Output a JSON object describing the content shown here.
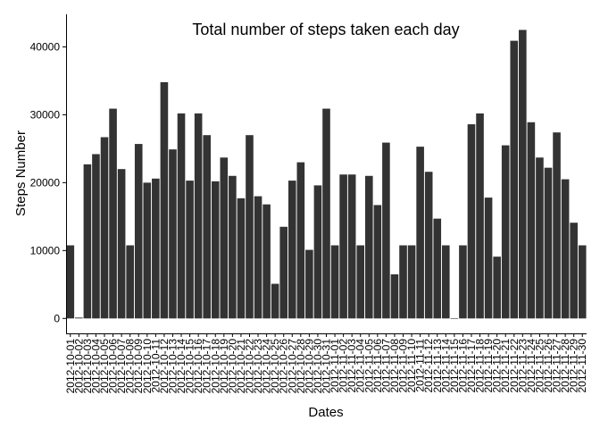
{
  "chart_data": {
    "type": "bar",
    "title": "Total number of steps taken each day",
    "xlabel": "Dates",
    "ylabel": "Steps Number",
    "ylim": [
      -2200,
      44800
    ],
    "yticks": [
      0,
      10000,
      20000,
      30000,
      40000
    ],
    "ytick_labels": [
      "0",
      "10000",
      "20000",
      "30000",
      "40000"
    ],
    "grid": false,
    "bar_color": "#333333",
    "categories": [
      "2012-10-01",
      "2012-10-02",
      "2012-10-03",
      "2012-10-04",
      "2012-10-05",
      "2012-10-06",
      "2012-10-07",
      "2012-10-08",
      "2012-10-09",
      "2012-10-10",
      "2012-10-11",
      "2012-10-12",
      "2012-10-13",
      "2012-10-14",
      "2012-10-15",
      "2012-10-16",
      "2012-10-17",
      "2012-10-18",
      "2012-10-19",
      "2012-10-20",
      "2012-10-21",
      "2012-10-22",
      "2012-10-23",
      "2012-10-24",
      "2012-10-25",
      "2012-10-26",
      "2012-10-27",
      "2012-10-28",
      "2012-10-29",
      "2012-10-30",
      "2012-10-31",
      "2012-11-01",
      "2012-11-02",
      "2012-11-03",
      "2012-11-04",
      "2012-11-05",
      "2012-11-06",
      "2012-11-07",
      "2012-11-08",
      "2012-11-09",
      "2012-11-10",
      "2012-11-11",
      "2012-11-12",
      "2012-11-13",
      "2012-11-14",
      "2012-11-15",
      "2012-11-16",
      "2012-11-17",
      "2012-11-18",
      "2012-11-19",
      "2012-11-20",
      "2012-11-21",
      "2012-11-22",
      "2012-11-23",
      "2012-11-24",
      "2012-11-25",
      "2012-11-26",
      "2012-11-27",
      "2012-11-28",
      "2012-11-29",
      "2012-11-30"
    ],
    "values": [
      10766,
      126,
      22700,
      24200,
      26700,
      30900,
      22000,
      10766,
      25700,
      20000,
      20600,
      34800,
      24900,
      30200,
      20300,
      30200,
      27000,
      20200,
      23700,
      21000,
      17700,
      27000,
      18000,
      16800,
      5100,
      13500,
      20300,
      23000,
      10100,
      19600,
      30900,
      10766,
      21200,
      21200,
      10766,
      21000,
      16700,
      25900,
      6500,
      10766,
      10766,
      25300,
      21600,
      14700,
      10766,
      41,
      10766,
      28600,
      30200,
      17800,
      9100,
      25500,
      40900,
      42500,
      28900,
      23700,
      22200,
      27400,
      20500,
      14100,
      10766
    ]
  }
}
